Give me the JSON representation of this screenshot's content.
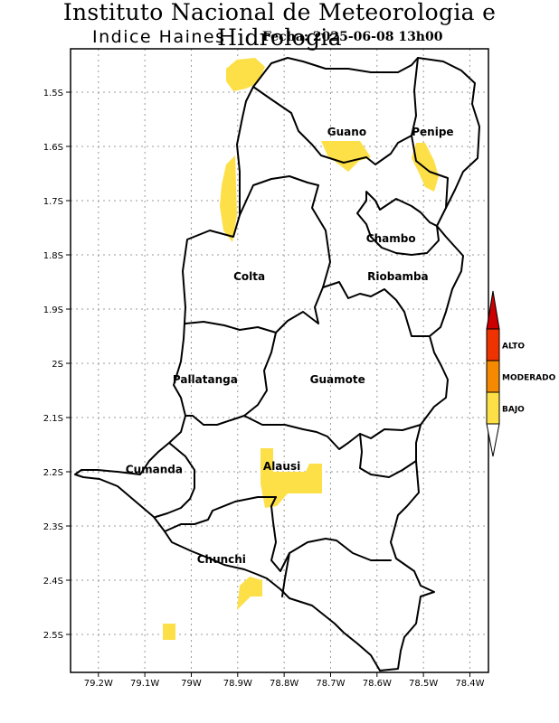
{
  "header": {
    "title": "Instituto Nacional de Meteorologia e Hidrologia",
    "subtitle": "Indice Haines",
    "datetime": "Fecha: 2025-06-08 13h00"
  },
  "map": {
    "lon_range": [
      -79.26,
      -78.36
    ],
    "lat_range": [
      -2.57,
      -1.42
    ],
    "x_ticks": [
      {
        "value": -79.2,
        "label": "79.2W"
      },
      {
        "value": -79.1,
        "label": "79.1W"
      },
      {
        "value": -79.0,
        "label": "79W"
      },
      {
        "value": -78.9,
        "label": "78.9W"
      },
      {
        "value": -78.8,
        "label": "78.8W"
      },
      {
        "value": -78.7,
        "label": "78.7W"
      },
      {
        "value": -78.6,
        "label": "78.6W"
      },
      {
        "value": -78.5,
        "label": "78.5W"
      },
      {
        "value": -78.4,
        "label": "78.4W"
      }
    ],
    "y_ticks": [
      {
        "value": -1.5,
        "label": "1.5S"
      },
      {
        "value": -1.6,
        "label": "1.6S"
      },
      {
        "value": -1.7,
        "label": "1.7S"
      },
      {
        "value": -1.8,
        "label": "1.8S"
      },
      {
        "value": -1.9,
        "label": "1.9S"
      },
      {
        "value": -2.0,
        "label": "2S"
      },
      {
        "value": -2.1,
        "label": "2.1S"
      },
      {
        "value": -2.2,
        "label": "2.2S"
      },
      {
        "value": -2.3,
        "label": "2.3S"
      },
      {
        "value": -2.4,
        "label": "2.4S"
      },
      {
        "value": -2.5,
        "label": "2.5S"
      }
    ],
    "grid": "dotted",
    "regions": [
      {
        "name": "Guano",
        "lon": -78.665,
        "lat": -1.573
      },
      {
        "name": "Penipe",
        "lon": -78.48,
        "lat": -1.573
      },
      {
        "name": "Chambo",
        "lon": -78.57,
        "lat": -1.77
      },
      {
        "name": "Colta",
        "lon": -78.875,
        "lat": -1.84
      },
      {
        "name": "Riobamba",
        "lon": -78.555,
        "lat": -1.84
      },
      {
        "name": "Pallatanga",
        "lon": -78.97,
        "lat": -2.03
      },
      {
        "name": "Guamote",
        "lon": -78.685,
        "lat": -2.03
      },
      {
        "name": "Cumanda",
        "lon": -79.08,
        "lat": -2.196
      },
      {
        "name": "Alausi",
        "lon": -78.805,
        "lat": -2.19
      },
      {
        "name": "Chunchi",
        "lon": -78.935,
        "lat": -2.362
      }
    ]
  },
  "legend": {
    "levels": [
      {
        "label": "ALTO",
        "color": "#ee3300"
      },
      {
        "label": "MODERADO",
        "color": "#f58a00"
      },
      {
        "label": "BAJO",
        "color": "#fde047"
      }
    ],
    "top_arrow_color": "#cc0000",
    "bottom_arrow_color": "#ffffff"
  }
}
